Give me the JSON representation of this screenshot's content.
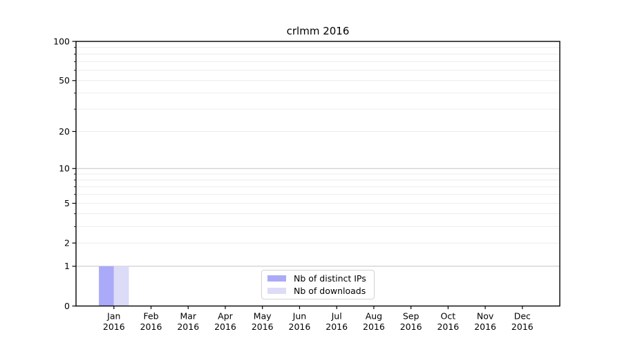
{
  "chart_data": {
    "type": "bar",
    "title": "crlmm 2016",
    "categories": [
      "Jan",
      "Feb",
      "Mar",
      "Apr",
      "May",
      "Jun",
      "Jul",
      "Aug",
      "Sep",
      "Oct",
      "Nov",
      "Dec"
    ],
    "category_year": "2016",
    "series": [
      {
        "name": "Nb of distinct IPs",
        "color": "#aaaaf8",
        "values": [
          1,
          0,
          0,
          0,
          0,
          0,
          0,
          0,
          0,
          0,
          0,
          0
        ]
      },
      {
        "name": "Nb of downloads",
        "color": "#dcdcf8",
        "values": [
          1,
          0,
          0,
          0,
          0,
          0,
          0,
          0,
          0,
          0,
          0,
          0
        ]
      }
    ],
    "yscale": "log1p",
    "ylim": [
      0,
      100
    ],
    "y_tick_values": [
      0,
      1,
      2,
      5,
      10,
      20,
      50,
      100
    ],
    "y_tick_labels": [
      "0",
      "1",
      "2",
      "5",
      "10",
      "20",
      "50",
      "100"
    ],
    "y_major_gridlines": [
      1,
      10,
      100
    ],
    "y_minor_gridlines": [
      2,
      3,
      4,
      5,
      6,
      7,
      8,
      9,
      20,
      30,
      40,
      50,
      60,
      70,
      80,
      90
    ],
    "y_minor_tick_values": [
      3,
      4,
      6,
      7,
      8,
      9,
      30,
      40,
      60,
      70,
      80,
      90
    ],
    "grid": true,
    "legend_position": "bottom-center",
    "colors": {
      "axis": "#000000",
      "tick_label": "#000000",
      "grid_major": "#c3c3c3",
      "grid_minor": "#ebebeb",
      "background": "#ffffff"
    }
  }
}
